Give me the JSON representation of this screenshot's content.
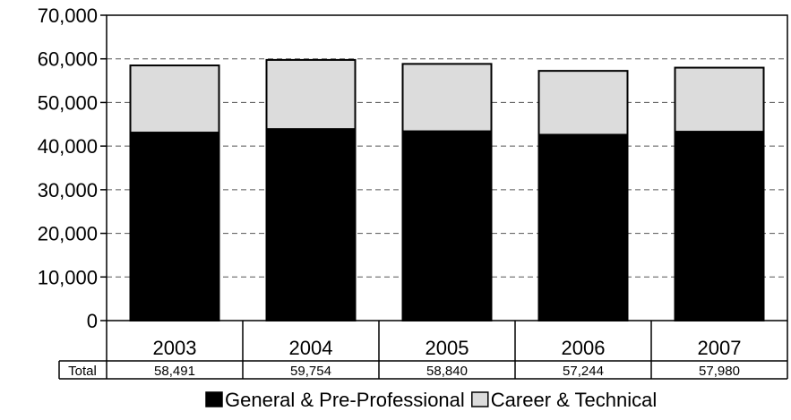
{
  "chart_data": {
    "type": "bar",
    "stacked": true,
    "categories": [
      "2003",
      "2004",
      "2005",
      "2006",
      "2007"
    ],
    "series": [
      {
        "name": "General & Pre-Professional",
        "color": "#000000",
        "values": [
          43100,
          43900,
          43400,
          42600,
          43300
        ]
      },
      {
        "name": "Career & Technical",
        "color": "#dcdcdc",
        "values": [
          15391,
          15854,
          15440,
          14644,
          14680
        ]
      }
    ],
    "ylim": [
      0,
      70000
    ],
    "yticks": [
      "0",
      "10,000",
      "20,000",
      "30,000",
      "40,000",
      "50,000",
      "60,000",
      "70,000"
    ],
    "grid": "dashed horizontal",
    "legend_position": "bottom",
    "table": {
      "row_label": "Total",
      "totals": [
        "58,491",
        "59,754",
        "58,840",
        "57,244",
        "57,980"
      ]
    }
  }
}
